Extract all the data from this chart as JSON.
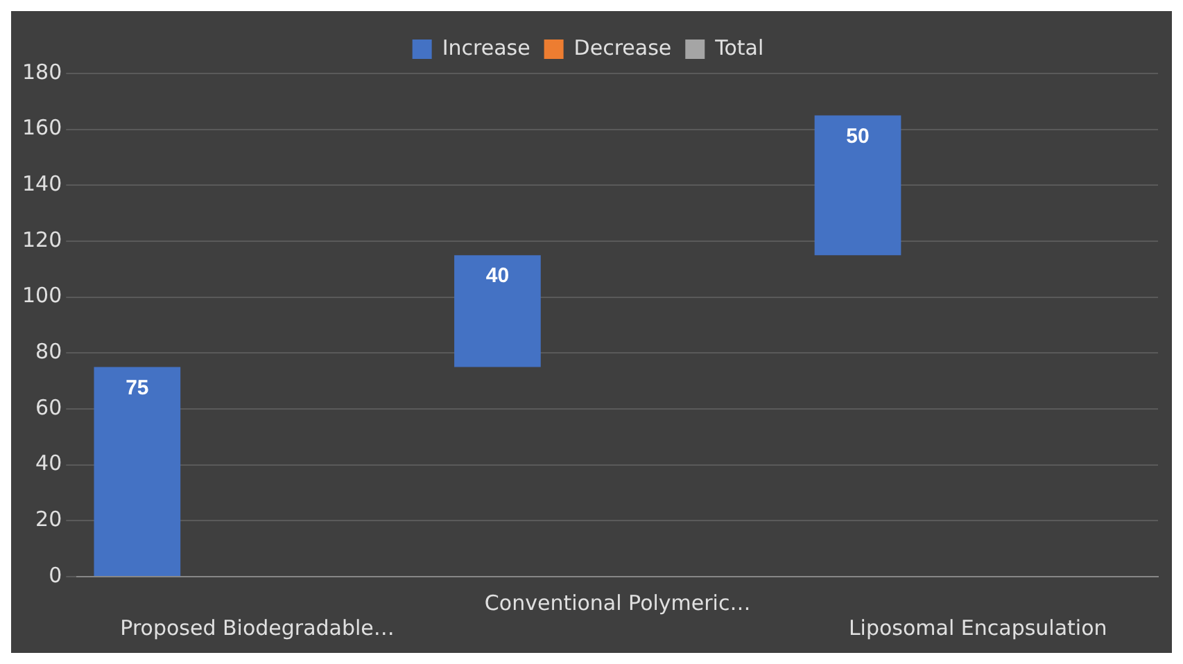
{
  "chart_data": {
    "type": "bar",
    "categories": [
      "Proposed Biodegradable…",
      "Conventional Polymeric…",
      "Liposomal Encapsulation"
    ],
    "series": [
      {
        "name": "Increase",
        "color": "#4472c4",
        "values": [
          75,
          40,
          50
        ],
        "base": [
          0,
          75,
          115
        ]
      },
      {
        "name": "Decrease",
        "color": "#ed7d31",
        "values": [
          null,
          null,
          null
        ]
      },
      {
        "name": "Total",
        "color": "#a5a5a5",
        "values": [
          null,
          null,
          null
        ]
      }
    ],
    "ylim": [
      0,
      180
    ],
    "yticks": [
      0,
      20,
      40,
      60,
      80,
      100,
      120,
      140,
      160,
      180
    ],
    "grid": "y",
    "legend": "top",
    "data_labels": true
  }
}
